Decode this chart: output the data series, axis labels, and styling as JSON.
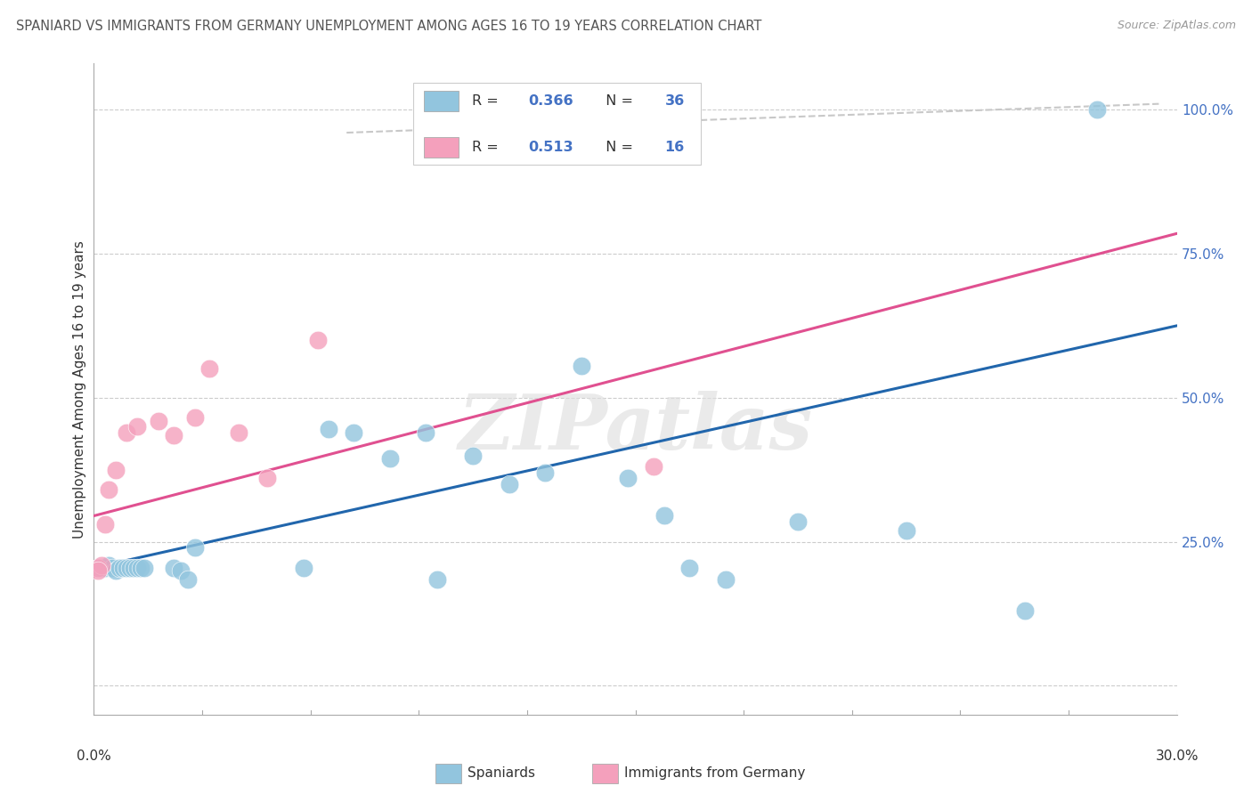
{
  "title": "SPANIARD VS IMMIGRANTS FROM GERMANY UNEMPLOYMENT AMONG AGES 16 TO 19 YEARS CORRELATION CHART",
  "source": "Source: ZipAtlas.com",
  "ylabel": "Unemployment Among Ages 16 to 19 years",
  "xlim": [
    0.0,
    0.3
  ],
  "ylim": [
    -0.05,
    1.08
  ],
  "plot_ylim": [
    0.0,
    1.05
  ],
  "yticks": [
    0.0,
    0.25,
    0.5,
    0.75,
    1.0
  ],
  "ytick_labels": [
    "",
    "25.0%",
    "50.0%",
    "75.0%",
    "100.0%"
  ],
  "xtick_left": "0.0%",
  "xtick_right": "30.0%",
  "watermark": "ZIPatlas",
  "legend_blue_r": "0.366",
  "legend_blue_n": "36",
  "legend_pink_r": "0.513",
  "legend_pink_n": "16",
  "spaniards_x": [
    0.001,
    0.002,
    0.003,
    0.004,
    0.005,
    0.006,
    0.007,
    0.008,
    0.009,
    0.01,
    0.011,
    0.012,
    0.013,
    0.014,
    0.022,
    0.024,
    0.026,
    0.028,
    0.058,
    0.065,
    0.072,
    0.082,
    0.092,
    0.095,
    0.105,
    0.115,
    0.125,
    0.135,
    0.148,
    0.158,
    0.165,
    0.175,
    0.195,
    0.225,
    0.258,
    0.278
  ],
  "spaniards_y": [
    0.205,
    0.205,
    0.205,
    0.21,
    0.205,
    0.2,
    0.205,
    0.205,
    0.205,
    0.205,
    0.205,
    0.205,
    0.205,
    0.205,
    0.205,
    0.2,
    0.185,
    0.24,
    0.205,
    0.445,
    0.44,
    0.395,
    0.44,
    0.185,
    0.4,
    0.35,
    0.37,
    0.555,
    0.36,
    0.295,
    0.205,
    0.185,
    0.285,
    0.27,
    0.13,
    1.0
  ],
  "germany_x": [
    0.001,
    0.002,
    0.003,
    0.004,
    0.006,
    0.009,
    0.012,
    0.018,
    0.022,
    0.028,
    0.032,
    0.04,
    0.048,
    0.062,
    0.155,
    0.001
  ],
  "germany_y": [
    0.205,
    0.21,
    0.28,
    0.34,
    0.375,
    0.44,
    0.45,
    0.46,
    0.435,
    0.465,
    0.55,
    0.44,
    0.36,
    0.6,
    0.38,
    0.2
  ],
  "blue_line_x": [
    0.0,
    0.3
  ],
  "blue_line_y": [
    0.205,
    0.625
  ],
  "pink_line_x": [
    0.0,
    0.3
  ],
  "pink_line_y": [
    0.295,
    0.785
  ],
  "dashed_line_x": [
    0.07,
    0.295
  ],
  "dashed_line_y": [
    0.96,
    1.01
  ],
  "blue_color": "#92c5de",
  "pink_color": "#f4a0bc",
  "blue_line_color": "#2166ac",
  "pink_line_color": "#e05090",
  "dashed_color": "#c8c8c8",
  "background_color": "#ffffff",
  "grid_color": "#cccccc",
  "text_color": "#333333",
  "axis_label_color": "#4472c4",
  "title_color": "#555555"
}
